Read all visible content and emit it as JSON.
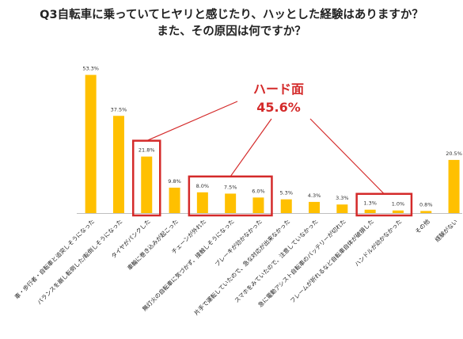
{
  "title_line1": "Q3自転車に乗っていてヒヤリと感じたり、ハッとした経験はありますか？",
  "title_line2": "また、その原因は何ですか？",
  "chart_data": {
    "type": "bar",
    "categories": [
      "車・歩行者・自転車と追突しそうになった",
      "バランスを崩し転倒した/転倒しそうになった",
      "タイヤがパンクした",
      "車輪に巻き込みが起こった",
      "チェーンが外れた",
      "無灯火の自転車に気づかず、接触しそうになった",
      "ブレーキが効かなかった",
      "片手で運転していたので、急な対応が出来なかった",
      "スマホをみていたので、注意していなかった",
      "急に電動アシスト自転車のバッテリーが切れた",
      "フレームが折れるなど自転車自体が破損した",
      "ハンドルが効かなかった",
      "その他",
      "経験がない"
    ],
    "values": [
      53.3,
      37.5,
      21.8,
      9.8,
      8.0,
      7.5,
      6.0,
      5.3,
      4.3,
      3.3,
      1.3,
      1.0,
      0.8,
      20.5
    ],
    "value_labels": [
      "53.3%",
      "37.5%",
      "21.8%",
      "9.8%",
      "8.0%",
      "7.5%",
      "6.0%",
      "5.3%",
      "4.3%",
      "3.3%",
      "1.3%",
      "1.0%",
      "0.8%",
      "20.5%"
    ],
    "ylim": [
      0,
      55
    ],
    "bar_color": "#FFC000",
    "annotation": {
      "label": "ハード面",
      "value": "45.6%",
      "color": "#D42A2A",
      "highlight_groups": [
        [
          2,
          2
        ],
        [
          4,
          6
        ],
        [
          10,
          11
        ]
      ]
    }
  }
}
